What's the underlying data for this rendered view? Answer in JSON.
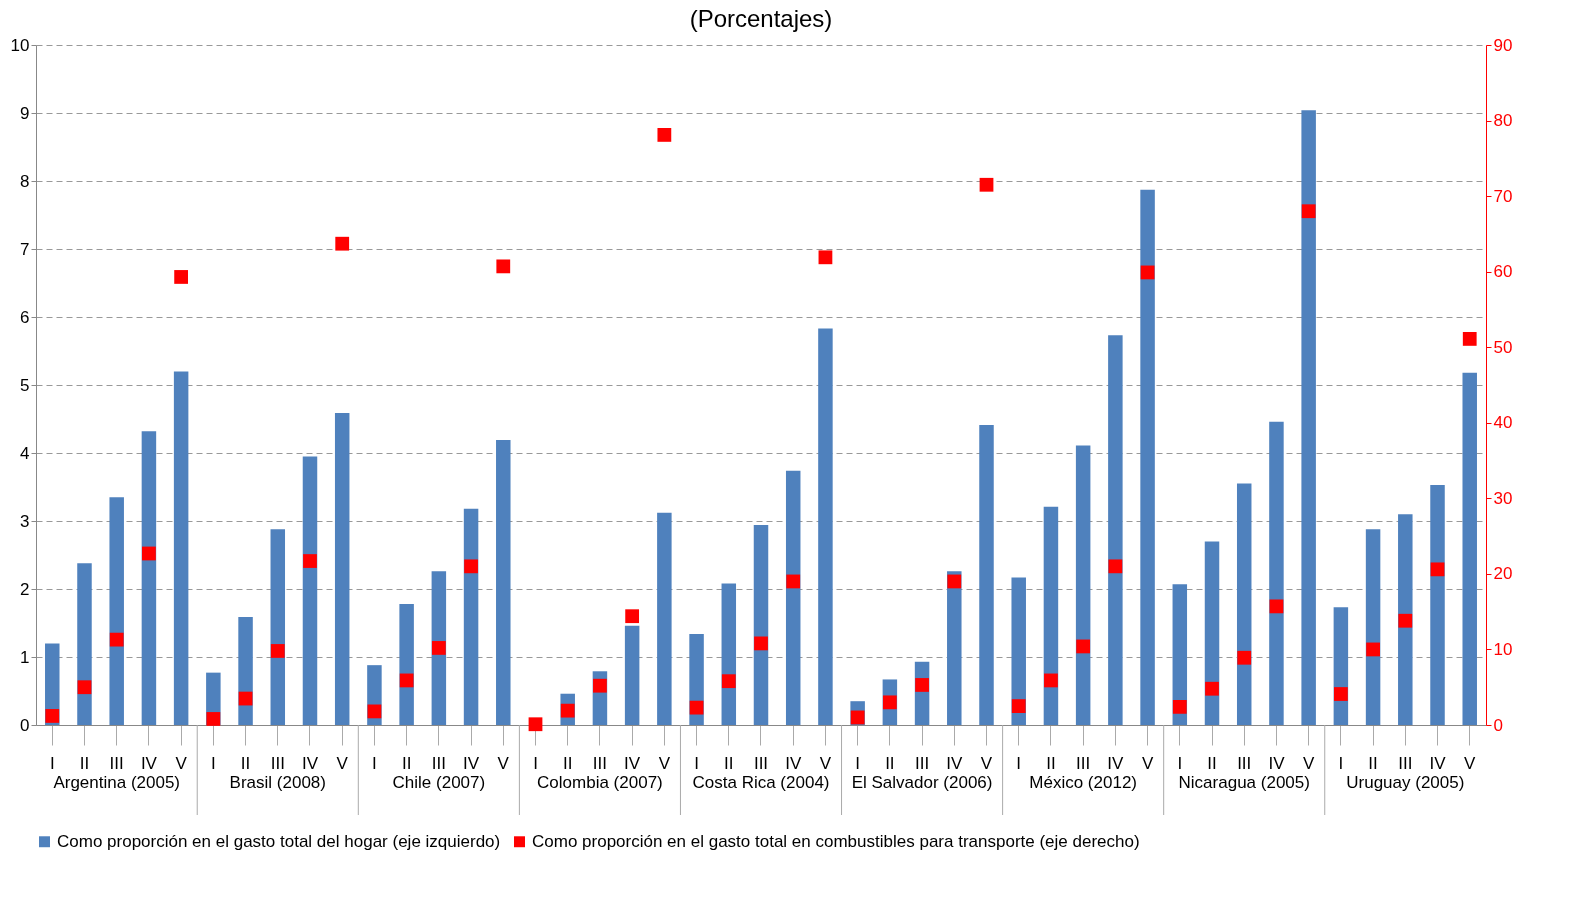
{
  "chart_data": {
    "type": "bar",
    "title": "(Porcentajes)",
    "categories": [
      "I",
      "II",
      "III",
      "IV",
      "V",
      "I",
      "II",
      "III",
      "IV",
      "V",
      "I",
      "II",
      "III",
      "IV",
      "V",
      "I",
      "II",
      "III",
      "IV",
      "V",
      "I",
      "II",
      "III",
      "IV",
      "V",
      "I",
      "II",
      "III",
      "IV",
      "V",
      "I",
      "II",
      "III",
      "IV",
      "V",
      "I",
      "II",
      "III",
      "IV",
      "V",
      "I",
      "II",
      "III",
      "IV",
      "V"
    ],
    "series": [
      {
        "name": "Como proporción en el gasto total del hogar (eje izquierdo)",
        "color": "#4f81bd",
        "values": [
          1.2,
          2.38,
          3.35,
          4.32,
          5.2,
          0.77,
          1.59,
          2.88,
          3.95,
          4.59,
          0.88,
          1.78,
          2.26,
          3.18,
          4.19,
          null,
          0.46,
          0.79,
          1.46,
          3.12,
          1.34,
          2.08,
          2.94,
          3.74,
          5.83,
          0.35,
          0.67,
          0.93,
          2.26,
          4.41,
          2.17,
          3.21,
          4.11,
          5.73,
          7.87,
          2.07,
          2.7,
          3.55,
          4.46,
          9.04,
          1.73,
          2.88,
          3.1,
          3.53,
          5.18
        ]
      },
      {
        "name": "Como proporción en el gasto total en combustibles para transporte (eje derecho)",
        "type": "scatter",
        "axis": "y2",
        "color": "#ff0000",
        "values": [
          1.2,
          5.0,
          11.3,
          22.7,
          59.3,
          0.8,
          3.5,
          9.8,
          21.7,
          63.7,
          1.8,
          5.9,
          10.2,
          21.0,
          60.7,
          0.1,
          1.9,
          5.2,
          14.4,
          78.1,
          2.3,
          5.8,
          10.8,
          19.0,
          61.9,
          1.0,
          3.0,
          5.3,
          19.0,
          71.5,
          2.5,
          5.9,
          10.4,
          21.0,
          59.9,
          2.4,
          4.8,
          8.9,
          15.7,
          68.0,
          4.1,
          10.0,
          13.8,
          20.6,
          51.1
        ]
      }
    ],
    "ylim": [
      0,
      10
    ],
    "yticks": [
      0,
      1,
      2,
      3,
      4,
      5,
      6,
      7,
      8,
      9,
      10
    ],
    "y2lim": [
      0,
      90
    ],
    "y2ticks": [
      0,
      10,
      20,
      30,
      40,
      50,
      60,
      70,
      80,
      90
    ],
    "grid": "y",
    "legend": "bottom",
    "marker": "square",
    "annotations": [
      "Argentina (2005)",
      "Brasil (2008)",
      "Chile (2007)",
      "Colombia (2007)",
      "Costa Rica (2004)",
      "El Salvador (2006)",
      "México (2012)",
      "Nicaragua (2005)",
      "Uruguay (2005)"
    ]
  }
}
